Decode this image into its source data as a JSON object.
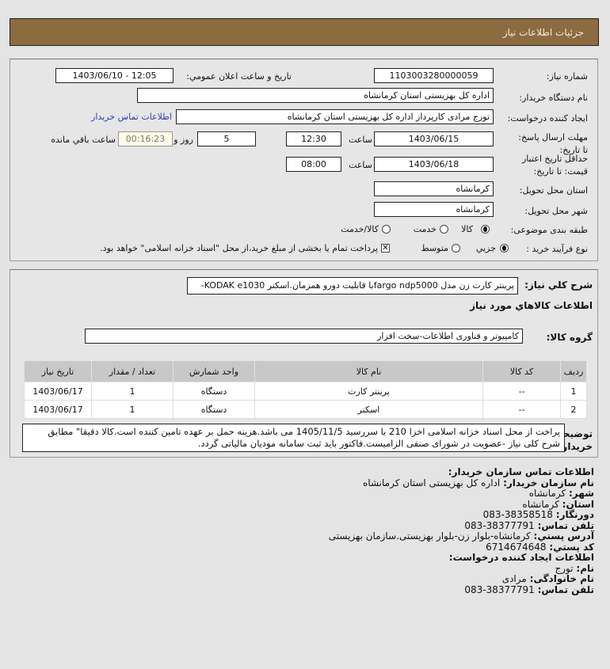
{
  "header": {
    "title": "جزئيات اطلاعات نیاز"
  },
  "form": {
    "need_number_label": "شماره نیاز:",
    "need_number": "1103003280000059",
    "announce_label": "تاريخ و ساعت اعلان عمومي:",
    "announce_value": "1403/06/10 - 12:05",
    "buyer_org_label": "نام دستگاه خريدار:",
    "buyer_org": "اداره کل بهزیستی استان کرمانشاه",
    "creator_label": "ايجاد کننده درخواست:",
    "creator": "تورج مرادی کارپرداز  اداره کل بهزیستی استان کرمانشاه",
    "contact_link": "اطلاعات تماس خریدار",
    "deadline_label": "مهلت ارسال پاسخ: تا تاريخ:",
    "deadline_date": "1403/06/15",
    "time_label": "ساعت",
    "deadline_time": "12:30",
    "days": "5",
    "days_label": "روز و",
    "remaining": "00:16:23",
    "remaining_label": "ساعت باقي مانده",
    "validity_label": "حداقل تاريخ اعتبار قيمت: تا تاريخ:",
    "validity_date": "1403/06/18",
    "validity_time": "08:00",
    "province_label": "استان محل تحويل:",
    "province": "کرمانشاه",
    "city_label": "شهر محل تحويل:",
    "city": "کرمانشاه",
    "category_label": "طبقه بندی موضوعی:",
    "category_options": [
      "کالا",
      "خدمت",
      "کالا/خدمت"
    ],
    "category_selected": "کالا",
    "process_label": "نوع فرآيند خريد :",
    "process_options": [
      "جزيي",
      "متوسط"
    ],
    "process_selected": "جزيي",
    "payment_note": "پرداخت تمام يا بخشی از مبلغ خريد،از محل \"اسناد خزانه اسلامی\" خواهد بود.",
    "payment_checked": true
  },
  "details": {
    "desc_label": "شرح کلي نياز:",
    "desc": "پرینتر کارت زن مدل fargo ndp5000با قابلیت دورو همزمان.اسکنر KODAK e1030-",
    "goods_title": "اطلاعات کالاهاي مورد نياز",
    "group_label": "گروه کالا:",
    "group": "کامپیوتر و فناوری اطلاعات-سخت افزار",
    "table": {
      "headers": [
        "رديف",
        "کد کالا",
        "نام کالا",
        "واحد شمارش",
        "تعداد / مقدار",
        "تاريخ نياز"
      ],
      "rows": [
        [
          "1",
          "--",
          "پرینتر کارت",
          "دستگاه",
          "1",
          "1403/06/17"
        ],
        [
          "2",
          "--",
          "اسکنر",
          "دستگاه",
          "1",
          "1403/06/17"
        ]
      ]
    },
    "notes_label": "توضيحات خريدار:",
    "notes": "پراخت از محل اسناد خزانه اسلامی اخزا 210 با سررسید 1405/11/5 می باشد.هزینه حمل بر عهده تامین کننده است.کالا دقیقا\" مطابق شرح کلی نیاز -عضویت در شورای صنفی الزامیست.فاکتور باید ثبت سامانه مودیان مالیاتی گردد."
  },
  "contact": {
    "title": "اطلاعات تماس سازمان خريدار:",
    "rows": [
      {
        "k": "نام سازمان خريدار:",
        "v": "اداره کل بهزیستی استان کرمانشاه"
      },
      {
        "k": "شهر:",
        "v": "کرمانشاه"
      },
      {
        "k": "استان:",
        "v": "کرمانشاه"
      },
      {
        "k": "دورنگار:",
        "v": "38358518-083"
      },
      {
        "k": "تلفن تماس:",
        "v": "38377791-083"
      },
      {
        "k": "آدرس پستي:",
        "v": "کرمانشاه-بلوار زن-بلوار بهزیستی.سازمان بهزیستی"
      },
      {
        "k": "کد پستي:",
        "v": "6714674648"
      }
    ],
    "creator_title": "اطلاعات ایجاد کننده درخواست:",
    "creator_rows": [
      {
        "k": "نام:",
        "v": "تورج"
      },
      {
        "k": "نام خانوادگی:",
        "v": "مرادی"
      },
      {
        "k": "تلفن تماس:",
        "v": "38377791-083"
      }
    ]
  },
  "colors": {
    "header": "#8b6b3f",
    "background": "#e4e4e4",
    "link": "#2a3fb0"
  }
}
